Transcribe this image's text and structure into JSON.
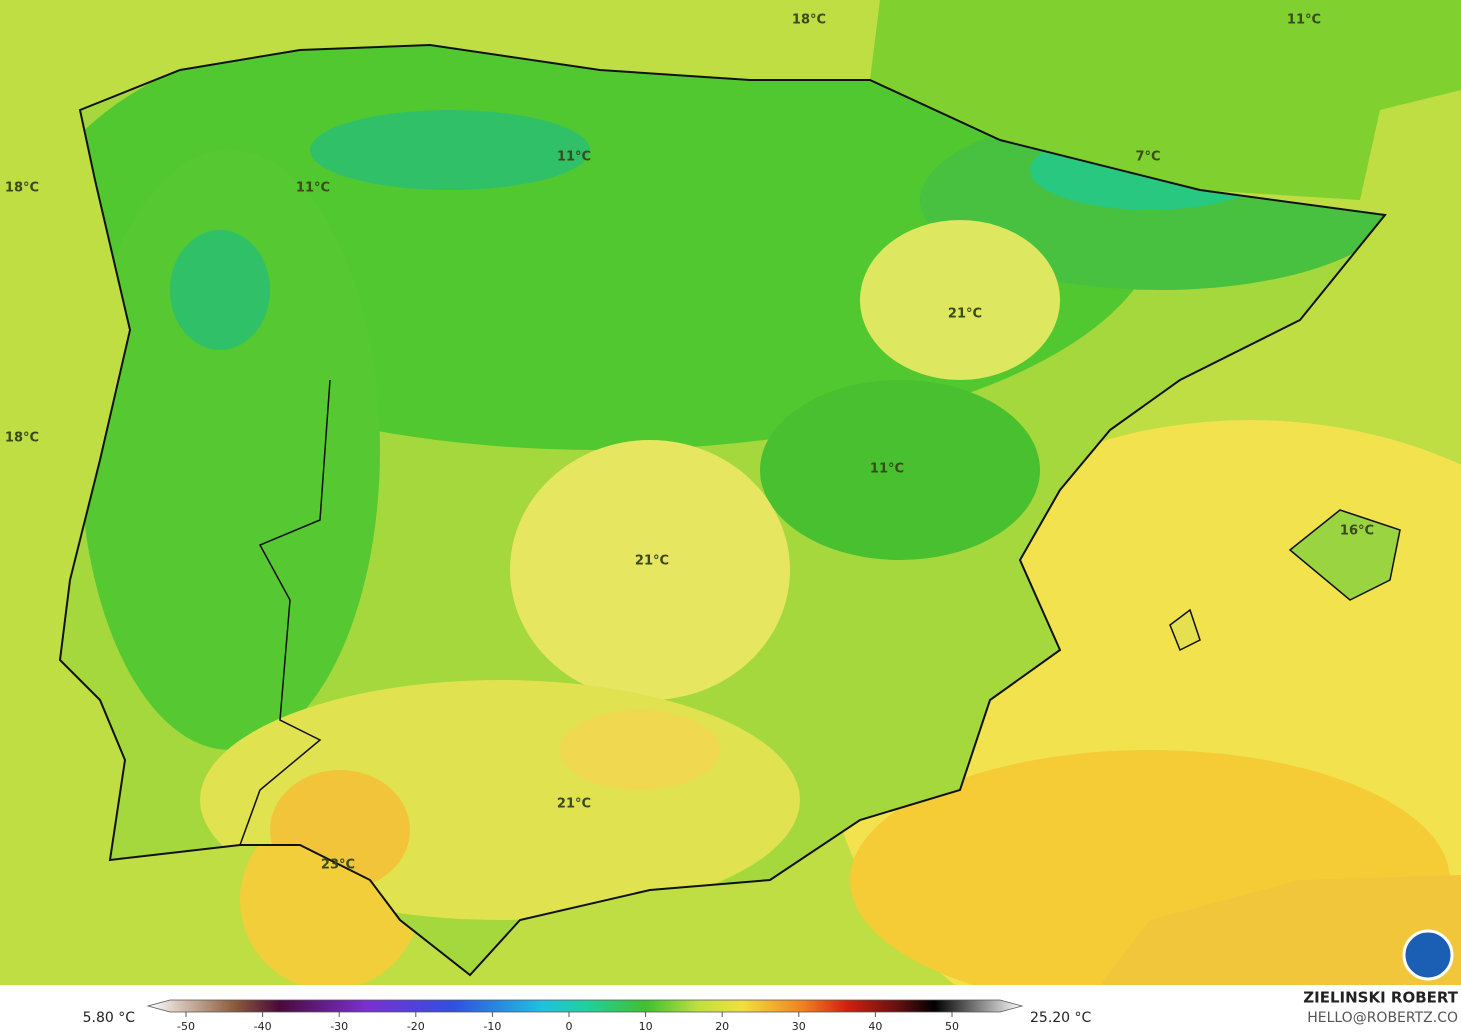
{
  "map": {
    "labels": [
      "18°C",
      "11°C",
      "18°C",
      "11°C",
      "11°C",
      "7°C",
      "21°C",
      "18°C",
      "11°C",
      "16°C",
      "21°C",
      "21°C",
      "23°C"
    ],
    "colorbar": {
      "min": "5.80 °C",
      "max": "25.20 °C",
      "ticks": [
        -50,
        -40,
        -30,
        -20,
        -10,
        0,
        10,
        20,
        30,
        40,
        50
      ]
    },
    "credit": {
      "name": "ZIELINSKI ROBERT",
      "contact": "HELLO@ROBERTZ.CO"
    }
  }
}
